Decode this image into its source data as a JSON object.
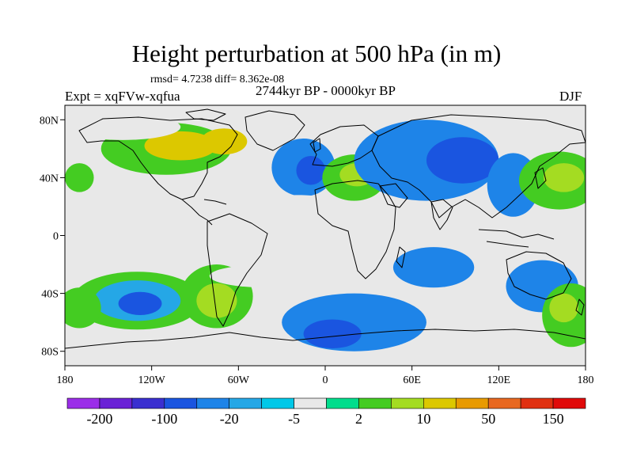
{
  "title": "Height perturbation at 500 hPa (in m)",
  "stats": "rmsd= 4.7238 diff= 8.362e-08",
  "experiment": "Expt = xqFVw-xqfua",
  "period": "2744kyr BP - 0000kyr BP",
  "season": "DJF",
  "map": {
    "projection": "cylindrical equidistant",
    "lon_range": [
      -180,
      180
    ],
    "lat_range": [
      -90,
      90
    ],
    "lon_ticks": [
      {
        "value": -180,
        "label": "180"
      },
      {
        "value": -120,
        "label": "120W"
      },
      {
        "value": -60,
        "label": "60W"
      },
      {
        "value": 0,
        "label": "0"
      },
      {
        "value": 60,
        "label": "60E"
      },
      {
        "value": 120,
        "label": "120E"
      },
      {
        "value": 180,
        "label": "180"
      }
    ],
    "lat_ticks": [
      {
        "value": 80,
        "label": "80N"
      },
      {
        "value": 40,
        "label": "40N"
      },
      {
        "value": 0,
        "label": "0"
      },
      {
        "value": -40,
        "label": "40S"
      },
      {
        "value": -80,
        "label": "80S"
      }
    ],
    "background_color": "#e8e8e8",
    "anomaly_regions": [
      {
        "lon": -110,
        "lat": 60,
        "rx": 45,
        "ry": 18,
        "level": 9
      },
      {
        "lon": -100,
        "lat": 62,
        "rx": 25,
        "ry": 10,
        "level": 11
      },
      {
        "lon": -70,
        "lat": 65,
        "rx": 16,
        "ry": 9,
        "level": 11
      },
      {
        "lon": -140,
        "lat": 75,
        "rx": 40,
        "ry": 9,
        "level": 7
      },
      {
        "lon": -25,
        "lat": 82,
        "rx": 45,
        "ry": 7,
        "level": 7
      },
      {
        "lon": -15,
        "lat": 47,
        "rx": 22,
        "ry": 20,
        "level": 4
      },
      {
        "lon": -10,
        "lat": 45,
        "rx": 10,
        "ry": 10,
        "level": 3
      },
      {
        "lon": 20,
        "lat": 40,
        "rx": 22,
        "ry": 16,
        "level": 9
      },
      {
        "lon": 22,
        "lat": 42,
        "rx": 12,
        "ry": 8,
        "level": 10
      },
      {
        "lon": 70,
        "lat": 52,
        "rx": 50,
        "ry": 28,
        "level": 4
      },
      {
        "lon": 95,
        "lat": 52,
        "rx": 25,
        "ry": 16,
        "level": 3
      },
      {
        "lon": 130,
        "lat": 35,
        "rx": 18,
        "ry": 22,
        "level": 4
      },
      {
        "lon": 162,
        "lat": 38,
        "rx": 28,
        "ry": 20,
        "level": 9
      },
      {
        "lon": 165,
        "lat": 40,
        "rx": 14,
        "ry": 10,
        "level": 10
      },
      {
        "lon": -170,
        "lat": 40,
        "rx": 10,
        "ry": 10,
        "level": 9
      },
      {
        "lon": -135,
        "lat": 35,
        "rx": 12,
        "ry": 8,
        "level": 7
      },
      {
        "lon": -75,
        "lat": 28,
        "rx": 14,
        "ry": 12,
        "level": 7
      },
      {
        "lon": -20,
        "lat": 20,
        "rx": 35,
        "ry": 8,
        "level": 7
      },
      {
        "lon": 90,
        "lat": 5,
        "rx": 40,
        "ry": 14,
        "level": 7
      },
      {
        "lon": 75,
        "lat": -22,
        "rx": 28,
        "ry": 14,
        "level": 4
      },
      {
        "lon": 150,
        "lat": -35,
        "rx": 25,
        "ry": 18,
        "level": 4
      },
      {
        "lon": -130,
        "lat": -45,
        "rx": 45,
        "ry": 20,
        "level": 9
      },
      {
        "lon": -130,
        "lat": -45,
        "rx": 30,
        "ry": 14,
        "level": 5
      },
      {
        "lon": -128,
        "lat": -47,
        "rx": 15,
        "ry": 8,
        "level": 3
      },
      {
        "lon": -170,
        "lat": -50,
        "rx": 15,
        "ry": 14,
        "level": 9
      },
      {
        "lon": -75,
        "lat": -42,
        "rx": 25,
        "ry": 22,
        "level": 9
      },
      {
        "lon": -75,
        "lat": -45,
        "rx": 14,
        "ry": 12,
        "level": 10
      },
      {
        "lon": -40,
        "lat": -28,
        "rx": 40,
        "ry": 8,
        "level": 7
      },
      {
        "lon": 20,
        "lat": -60,
        "rx": 50,
        "ry": 20,
        "level": 4
      },
      {
        "lon": 5,
        "lat": -68,
        "rx": 20,
        "ry": 10,
        "level": 3
      },
      {
        "lon": 170,
        "lat": -55,
        "rx": 20,
        "ry": 22,
        "level": 9
      },
      {
        "lon": 165,
        "lat": -50,
        "rx": 10,
        "ry": 10,
        "level": 10
      }
    ]
  },
  "colorbar": {
    "colors": [
      "#9b2ee8",
      "#6a22d6",
      "#3a2fd0",
      "#1a55e0",
      "#1e84e8",
      "#25a7e6",
      "#00c8e8",
      "#e8e8e8",
      "#00dd8c",
      "#44cc22",
      "#a4dc22",
      "#dcc800",
      "#e89a00",
      "#e86820",
      "#e03010",
      "#e00a0a"
    ],
    "labels": [
      {
        "after_box": 1,
        "text": "-200"
      },
      {
        "after_box": 3,
        "text": "-100"
      },
      {
        "after_box": 5,
        "text": "-20"
      },
      {
        "after_box": 7,
        "text": "-5"
      },
      {
        "after_box": 9,
        "text": "2"
      },
      {
        "after_box": 11,
        "text": "10"
      },
      {
        "after_box": 13,
        "text": "50"
      },
      {
        "after_box": 15,
        "text": "150"
      }
    ]
  }
}
